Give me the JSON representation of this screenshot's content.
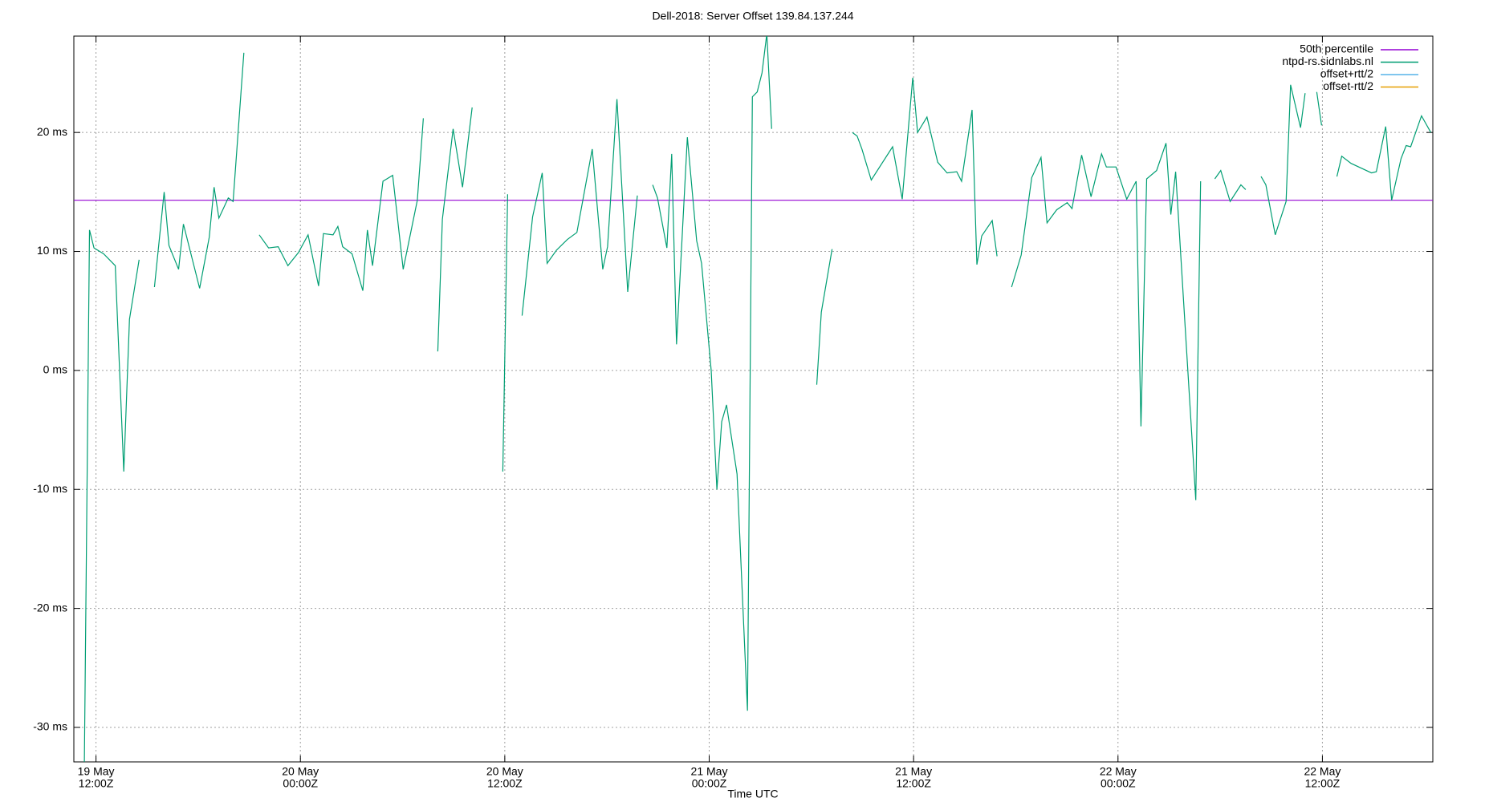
{
  "chart_data": {
    "type": "line",
    "title": "Dell-2018: Server Offset 139.84.137.244",
    "x_label": "Time UTC",
    "xlim": [
      "19 May 10:42",
      "22 May 18:29"
    ],
    "ylim": [
      -32.9,
      28.1
    ],
    "grid": true,
    "legend": "top-right",
    "xticks": [
      {
        "value": "19 May 12:00",
        "label": [
          "19 May",
          "12:00Z"
        ]
      },
      {
        "value": "20 May 00:00",
        "label": [
          "20 May",
          "00:00Z"
        ]
      },
      {
        "value": "20 May 12:00",
        "label": [
          "20 May",
          "12:00Z"
        ]
      },
      {
        "value": "21 May 00:00",
        "label": [
          "21 May",
          "00:00Z"
        ]
      },
      {
        "value": "21 May 12:00",
        "label": [
          "21 May",
          "12:00Z"
        ]
      },
      {
        "value": "22 May 00:00",
        "label": [
          "22 May",
          "00:00Z"
        ]
      },
      {
        "value": "22 May 12:00",
        "label": [
          "22 May",
          "12:00Z"
        ]
      }
    ],
    "yticks": [
      {
        "value": -30,
        "label": "-30 ms"
      },
      {
        "value": -20,
        "label": "-20 ms"
      },
      {
        "value": -10,
        "label": "-10 ms"
      },
      {
        "value": 0,
        "label": "0 ms"
      },
      {
        "value": 10,
        "label": "10 ms"
      },
      {
        "value": 20,
        "label": "20 ms"
      }
    ],
    "series": [
      {
        "name": "50th percentile",
        "color": "#9400d3",
        "x": [
          "19 May 10:42",
          "22 May 18:29"
        ],
        "values": [
          14.3,
          14.3
        ]
      },
      {
        "name": "ntpd-rs.sidnlabs.nl",
        "color": "#009e73",
        "x": [
          "19 May 11:19",
          "19 May 11:37",
          "19 May 11:53",
          "19 May 12:27",
          "19 May 13:08",
          "19 May 13:38",
          "19 May 13:58",
          "19 May 14:32",
          null,
          "19 May 15:26",
          "19 May 16:00",
          "19 May 16:17",
          "19 May 16:51",
          "19 May 17:08",
          "19 May 18:05",
          "19 May 18:39",
          "19 May 18:56",
          "19 May 19:13",
          "19 May 19:46",
          "19 May 20:03",
          "19 May 20:41",
          null,
          "19 May 21:35",
          "19 May 22:08",
          "19 May 22:42",
          "19 May 23:16",
          "19 May 23:53",
          "20 May 00:27",
          "20 May 01:04",
          "20 May 01:21",
          "20 May 01:55",
          "20 May 02:12",
          "20 May 02:29",
          "20 May 03:02",
          "20 May 03:40",
          "20 May 03:56",
          "20 May 04:14",
          "20 May 04:51",
          "20 May 05:25",
          "20 May 06:02",
          "20 May 06:52",
          "20 May 07:13",
          null,
          "20 May 08:04",
          "20 May 08:20",
          "20 May 08:58",
          "20 May 09:31",
          "20 May 10:05",
          null,
          "20 May 11:53",
          "20 May 12:10",
          null,
          "20 May 13:01",
          "20 May 13:38",
          "20 May 14:12",
          "20 May 14:29",
          "20 May 15:02",
          "20 May 15:40",
          "20 May 16:14",
          "20 May 17:08",
          "20 May 17:45",
          "20 May 18:02",
          "20 May 18:35",
          "20 May 19:13",
          "20 May 19:47",
          null,
          "20 May 20:41",
          "20 May 20:58",
          "20 May 21:31",
          "20 May 21:48",
          "20 May 22:05",
          "20 May 22:43",
          "20 May 23:16",
          "20 May 23:33",
          "21 May 00:07",
          "21 May 00:27",
          "21 May 00:44",
          "21 May 01:01",
          "21 May 01:38",
          "21 May 02:15",
          "21 May 02:32",
          "21 May 02:49",
          "21 May 03:06",
          "21 May 03:23",
          "21 May 03:40",
          null,
          "21 May 06:19",
          "21 May 06:35",
          "21 May 07:13",
          null,
          "21 May 08:24",
          "21 May 08:41",
          "21 May 08:58",
          "21 May 09:31",
          "21 May 10:46",
          "21 May 11:20",
          "21 May 11:57",
          "21 May 12:14",
          "21 May 12:47",
          "21 May 13:25",
          "21 May 13:58",
          "21 May 14:32",
          "21 May 14:49",
          "21 May 15:26",
          "21 May 15:43",
          "21 May 16:00",
          "21 May 16:37",
          "21 May 16:54",
          null,
          "21 May 17:45",
          "21 May 18:19",
          "21 May 18:56",
          "21 May 19:29",
          "21 May 19:50",
          "21 May 20:24",
          "21 May 21:01",
          "21 May 21:18",
          "21 May 21:52",
          "21 May 22:25",
          "21 May 23:02",
          "21 May 23:19",
          "21 May 23:53",
          "22 May 00:31",
          "22 May 01:04",
          "22 May 01:21",
          "22 May 01:41",
          "22 May 02:16",
          "22 May 02:49",
          "22 May 03:06",
          "22 May 03:23",
          "22 May 04:34",
          "22 May 04:51",
          null,
          "22 May 05:41",
          "22 May 06:02",
          "22 May 06:35",
          "22 May 07:13",
          "22 May 07:30",
          null,
          "22 May 08:24",
          "22 May 08:41",
          "22 May 09:14",
          "22 May 09:52",
          "22 May 10:08",
          "22 May 10:43",
          "22 May 10:59",
          null,
          "22 May 11:40",
          "22 May 11:57",
          null,
          "22 May 12:51",
          "22 May 13:08",
          "22 May 13:41",
          "22 May 14:53",
          "22 May 15:10",
          "22 May 15:43",
          "22 May 16:04",
          "22 May 16:37",
          "22 May 16:55",
          "22 May 17:11",
          "22 May 17:49",
          "22 May 18:22"
        ],
        "values": [
          -33,
          11.8,
          10.3,
          9.8,
          8.8,
          -8.5,
          4.3,
          9.3,
          null,
          7.0,
          15.0,
          10.5,
          8.5,
          12.3,
          6.9,
          11.2,
          15.4,
          12.8,
          14.5,
          14.2,
          26.7,
          null,
          11.4,
          10.3,
          10.4,
          8.8,
          9.9,
          11.4,
          7.1,
          11.5,
          11.4,
          12.1,
          10.4,
          9.8,
          6.7,
          11.8,
          8.8,
          15.9,
          16.4,
          8.5,
          14.3,
          21.2,
          null,
          1.6,
          12.7,
          20.3,
          15.4,
          22.1,
          null,
          -8.5,
          14.8,
          null,
          4.6,
          12.9,
          16.6,
          9.0,
          10.1,
          11.0,
          11.6,
          18.6,
          8.5,
          10.4,
          22.8,
          6.6,
          14.7,
          null,
          15.6,
          14.5,
          10.3,
          18.2,
          2.2,
          19.6,
          10.9,
          9.0,
          0.0,
          -10.0,
          -4.3,
          -2.9,
          -8.7,
          -28.6,
          23.0,
          23.4,
          25.0,
          28.3,
          20.3,
          null,
          -1.2,
          4.9,
          10.2,
          null,
          20.0,
          19.7,
          18.6,
          16.0,
          18.8,
          14.4,
          24.6,
          20.0,
          21.3,
          17.5,
          16.6,
          16.7,
          15.9,
          21.9,
          8.9,
          11.3,
          12.6,
          9.6,
          null,
          7.0,
          9.7,
          16.2,
          17.9,
          12.4,
          13.5,
          14.1,
          13.6,
          18.1,
          14.6,
          18.2,
          17.1,
          17.1,
          14.4,
          15.9,
          -4.7,
          16.1,
          16.8,
          19.1,
          13.1,
          16.7,
          -10.9,
          15.9,
          null,
          16.1,
          16.8,
          14.2,
          15.6,
          15.2,
          null,
          16.3,
          15.6,
          11.4,
          14.2,
          24.0,
          20.4,
          23.3,
          null,
          23.4,
          20.6,
          null,
          16.3,
          18.0,
          17.4,
          16.6,
          16.7,
          20.5,
          14.3,
          17.8,
          18.9,
          18.8,
          21.4,
          20.0
        ]
      },
      {
        "name": "offset+rtt/2",
        "color": "#56b4e9",
        "x": [],
        "values": []
      },
      {
        "name": "offset-rtt/2",
        "color": "#e69f00",
        "x": [],
        "values": []
      }
    ]
  }
}
